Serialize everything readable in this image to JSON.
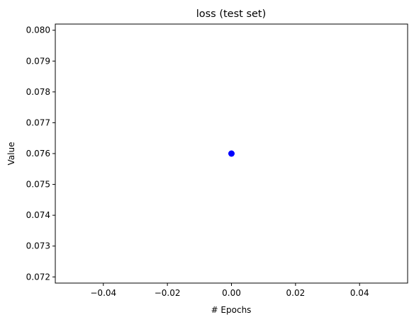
{
  "chart_data": {
    "type": "scatter",
    "title": "loss (test set)",
    "xlabel": "# Epochs",
    "ylabel": "Value",
    "xlim": [
      -0.055,
      0.055
    ],
    "ylim": [
      0.0718,
      0.0802
    ],
    "xticks": [
      -0.04,
      -0.02,
      0.0,
      0.02,
      0.04
    ],
    "xtick_labels": [
      "−0.04",
      "−0.02",
      "0.00",
      "0.02",
      "0.04"
    ],
    "yticks": [
      0.072,
      0.073,
      0.074,
      0.075,
      0.076,
      0.077,
      0.078,
      0.079,
      0.08
    ],
    "ytick_labels": [
      "0.072",
      "0.073",
      "0.074",
      "0.075",
      "0.076",
      "0.077",
      "0.078",
      "0.079",
      "0.080"
    ],
    "grid": false,
    "series": [
      {
        "color": "#0000ff",
        "x": [
          0.0
        ],
        "y": [
          0.076
        ]
      }
    ]
  }
}
